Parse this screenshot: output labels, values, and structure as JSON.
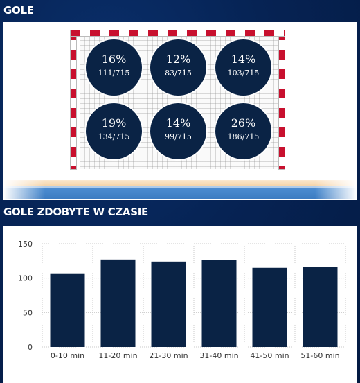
{
  "sections": {
    "goals_title": "GOLE",
    "time_title": "GOLE ZDOBYTE W CZASIE"
  },
  "colors": {
    "background": "#062354",
    "zone_fill": "#0a2345",
    "bar_fill": "#0a2345",
    "post_red": "#c8102e",
    "court_blue": "#3d7cc2"
  },
  "goal_zones": [
    {
      "position": "top-left",
      "percent": "16%",
      "count": "111/715"
    },
    {
      "position": "top-center",
      "percent": "12%",
      "count": "83/715"
    },
    {
      "position": "top-right",
      "percent": "14%",
      "count": "103/715"
    },
    {
      "position": "bottom-left",
      "percent": "19%",
      "count": "134/715"
    },
    {
      "position": "bottom-center",
      "percent": "14%",
      "count": "99/715"
    },
    {
      "position": "bottom-right",
      "percent": "26%",
      "count": "186/715"
    }
  ],
  "chart_data": {
    "type": "bar",
    "categories": [
      "0-10 min",
      "11-20 min",
      "21-30 min",
      "31-40 min",
      "41-50 min",
      "51-60 min"
    ],
    "values": [
      107,
      127,
      124,
      126,
      115,
      116
    ],
    "ylim": [
      0,
      150
    ],
    "yticks": [
      0,
      50,
      100,
      150
    ],
    "grid": true,
    "title": "",
    "xlabel": "",
    "ylabel": ""
  }
}
